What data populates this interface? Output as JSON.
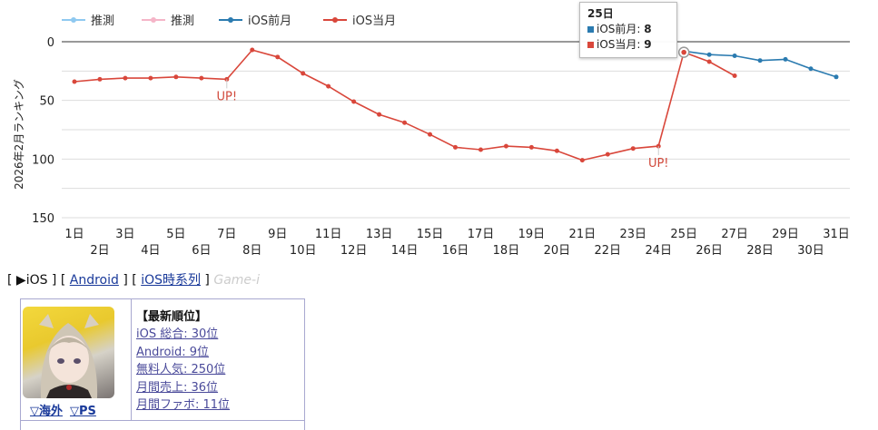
{
  "chart_data": {
    "type": "line",
    "ylabel": "2026年2月ランキング",
    "y_reversed": true,
    "ylim": [
      0,
      150
    ],
    "yticks": [
      0,
      50,
      100,
      150
    ],
    "categories": [
      "1日",
      "2日",
      "3日",
      "4日",
      "5日",
      "6日",
      "7日",
      "8日",
      "9日",
      "10日",
      "11日",
      "12日",
      "13日",
      "14日",
      "15日",
      "16日",
      "17日",
      "18日",
      "19日",
      "20日",
      "21日",
      "22日",
      "23日",
      "24日",
      "25日",
      "26日",
      "27日",
      "28日",
      "29日",
      "30日",
      "31日"
    ],
    "legend": [
      {
        "name": "推測",
        "color": "#8fc9f0"
      },
      {
        "name": "推測",
        "color": "#f5b5c8"
      },
      {
        "name": "iOS前月",
        "color": "#2b7bb0"
      },
      {
        "name": "iOS当月",
        "color": "#d9473b"
      }
    ],
    "series": [
      {
        "name": "iOS前月",
        "color": "#2b7bb0",
        "values": [
          null,
          null,
          null,
          null,
          null,
          null,
          null,
          null,
          null,
          null,
          null,
          null,
          null,
          null,
          null,
          null,
          null,
          null,
          null,
          null,
          null,
          null,
          null,
          null,
          8,
          11,
          12,
          16,
          15,
          23,
          30
        ]
      },
      {
        "name": "iOS当月",
        "color": "#d9473b",
        "values": [
          34,
          32,
          31,
          31,
          30,
          31,
          32,
          7,
          13,
          27,
          38,
          51,
          62,
          69,
          79,
          90,
          92,
          89,
          90,
          93,
          101,
          96,
          91,
          89,
          9,
          17,
          29,
          null,
          null,
          null,
          null
        ]
      }
    ],
    "annotations": [
      {
        "text": "UP!",
        "x": "7日"
      },
      {
        "text": "UP!",
        "x": "24日"
      }
    ],
    "tooltip": {
      "title": "25日",
      "rows": [
        {
          "name": "iOS前月",
          "value": "8",
          "color": "#2b7bb0"
        },
        {
          "name": "iOS当月",
          "value": "9",
          "color": "#d9473b"
        }
      ]
    }
  },
  "nav": {
    "bracket_open": "[",
    "ios": "▶iOS",
    "android": "Android",
    "ios_series": "iOS時系列",
    "gamei": "Game-i"
  },
  "info": {
    "title": "【最新順位】",
    "links": [
      "iOS 総合: 30位",
      "Android: 9位",
      "無料人気: 250位",
      "月間売上: 36位",
      "月間ファボ: 11位"
    ],
    "avatar_link1": "▽海外",
    "avatar_link2": "▽PS"
  }
}
